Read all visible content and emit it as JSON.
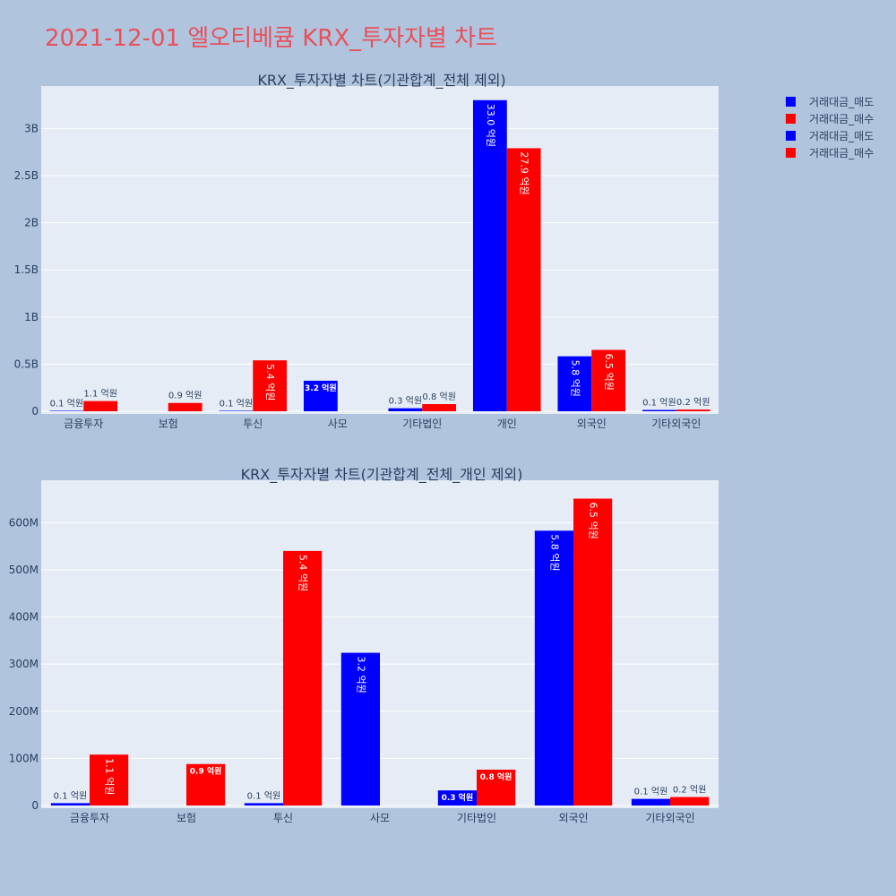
{
  "page_title": "2021-12-01 엘오티베큠 KRX_투자자별 차트",
  "colors": {
    "sell": "#0000ff",
    "buy": "#ff0000",
    "background": "#b0c4de",
    "plot_bg": "#e5ecf6",
    "title": "#e8505b"
  },
  "legend": [
    "거래대금_매도",
    "거래대금_매수",
    "거래대금_매도",
    "거래대금_매수"
  ],
  "chart_data": [
    {
      "type": "bar",
      "title": "KRX_투자자별 차트(기관합계_전체 제외)",
      "categories": [
        "금융투자",
        "보험",
        "투신",
        "사모",
        "기타법인",
        "개인",
        "외국인",
        "기타외국인"
      ],
      "series": [
        {
          "name": "거래대금_매도",
          "values": [
            5000000,
            0,
            5000000,
            324000000,
            32000000,
            3300000000,
            583000000,
            14000000
          ],
          "labels": [
            "0.1 억원",
            "",
            "0.1 억원",
            "3.2 억원",
            "0.3 억원",
            "33.0 억원",
            "5.8 억원",
            "0.1 억원"
          ]
        },
        {
          "name": "거래대금_매수",
          "values": [
            108000000,
            88000000,
            540000000,
            0,
            76000000,
            2790000000,
            651000000,
            18000000
          ],
          "labels": [
            "1.1 억원",
            "0.9 억원",
            "5.4 억원",
            "",
            "0.8 억원",
            "27.9 억원",
            "6.5 억원",
            "0.2 억원"
          ]
        }
      ],
      "ylim": [
        0,
        3450000000
      ],
      "yticks": [
        0,
        500000000,
        1000000000,
        1500000000,
        2000000000,
        2500000000,
        3000000000
      ],
      "ytick_labels": [
        "0",
        "0.5B",
        "1B",
        "1.5B",
        "2B",
        "2.5B",
        "3B"
      ]
    },
    {
      "type": "bar",
      "title": "KRX_투자자별 차트(기관합계_전체_개인 제외)",
      "categories": [
        "금융투자",
        "보험",
        "투신",
        "사모",
        "기타법인",
        "외국인",
        "기타외국인"
      ],
      "series": [
        {
          "name": "거래대금_매도",
          "values": [
            5000000,
            0,
            5000000,
            324000000,
            32000000,
            583000000,
            14000000
          ],
          "labels": [
            "0.1 억원",
            "",
            "0.1 억원",
            "3.2 억원",
            "0.3 억원",
            "5.8 억원",
            "0.1 억원"
          ]
        },
        {
          "name": "거래대금_매수",
          "values": [
            108000000,
            88000000,
            540000000,
            0,
            76000000,
            651000000,
            18000000
          ],
          "labels": [
            "1.1 억원",
            "0.9 억원",
            "5.4 억원",
            "",
            "0.8 억원",
            "6.5 억원",
            "0.2 억원"
          ]
        }
      ],
      "ylim": [
        0,
        690000000
      ],
      "yticks": [
        0,
        100000000,
        200000000,
        300000000,
        400000000,
        500000000,
        600000000
      ],
      "ytick_labels": [
        "0",
        "100M",
        "200M",
        "300M",
        "400M",
        "500M",
        "600M"
      ]
    }
  ]
}
